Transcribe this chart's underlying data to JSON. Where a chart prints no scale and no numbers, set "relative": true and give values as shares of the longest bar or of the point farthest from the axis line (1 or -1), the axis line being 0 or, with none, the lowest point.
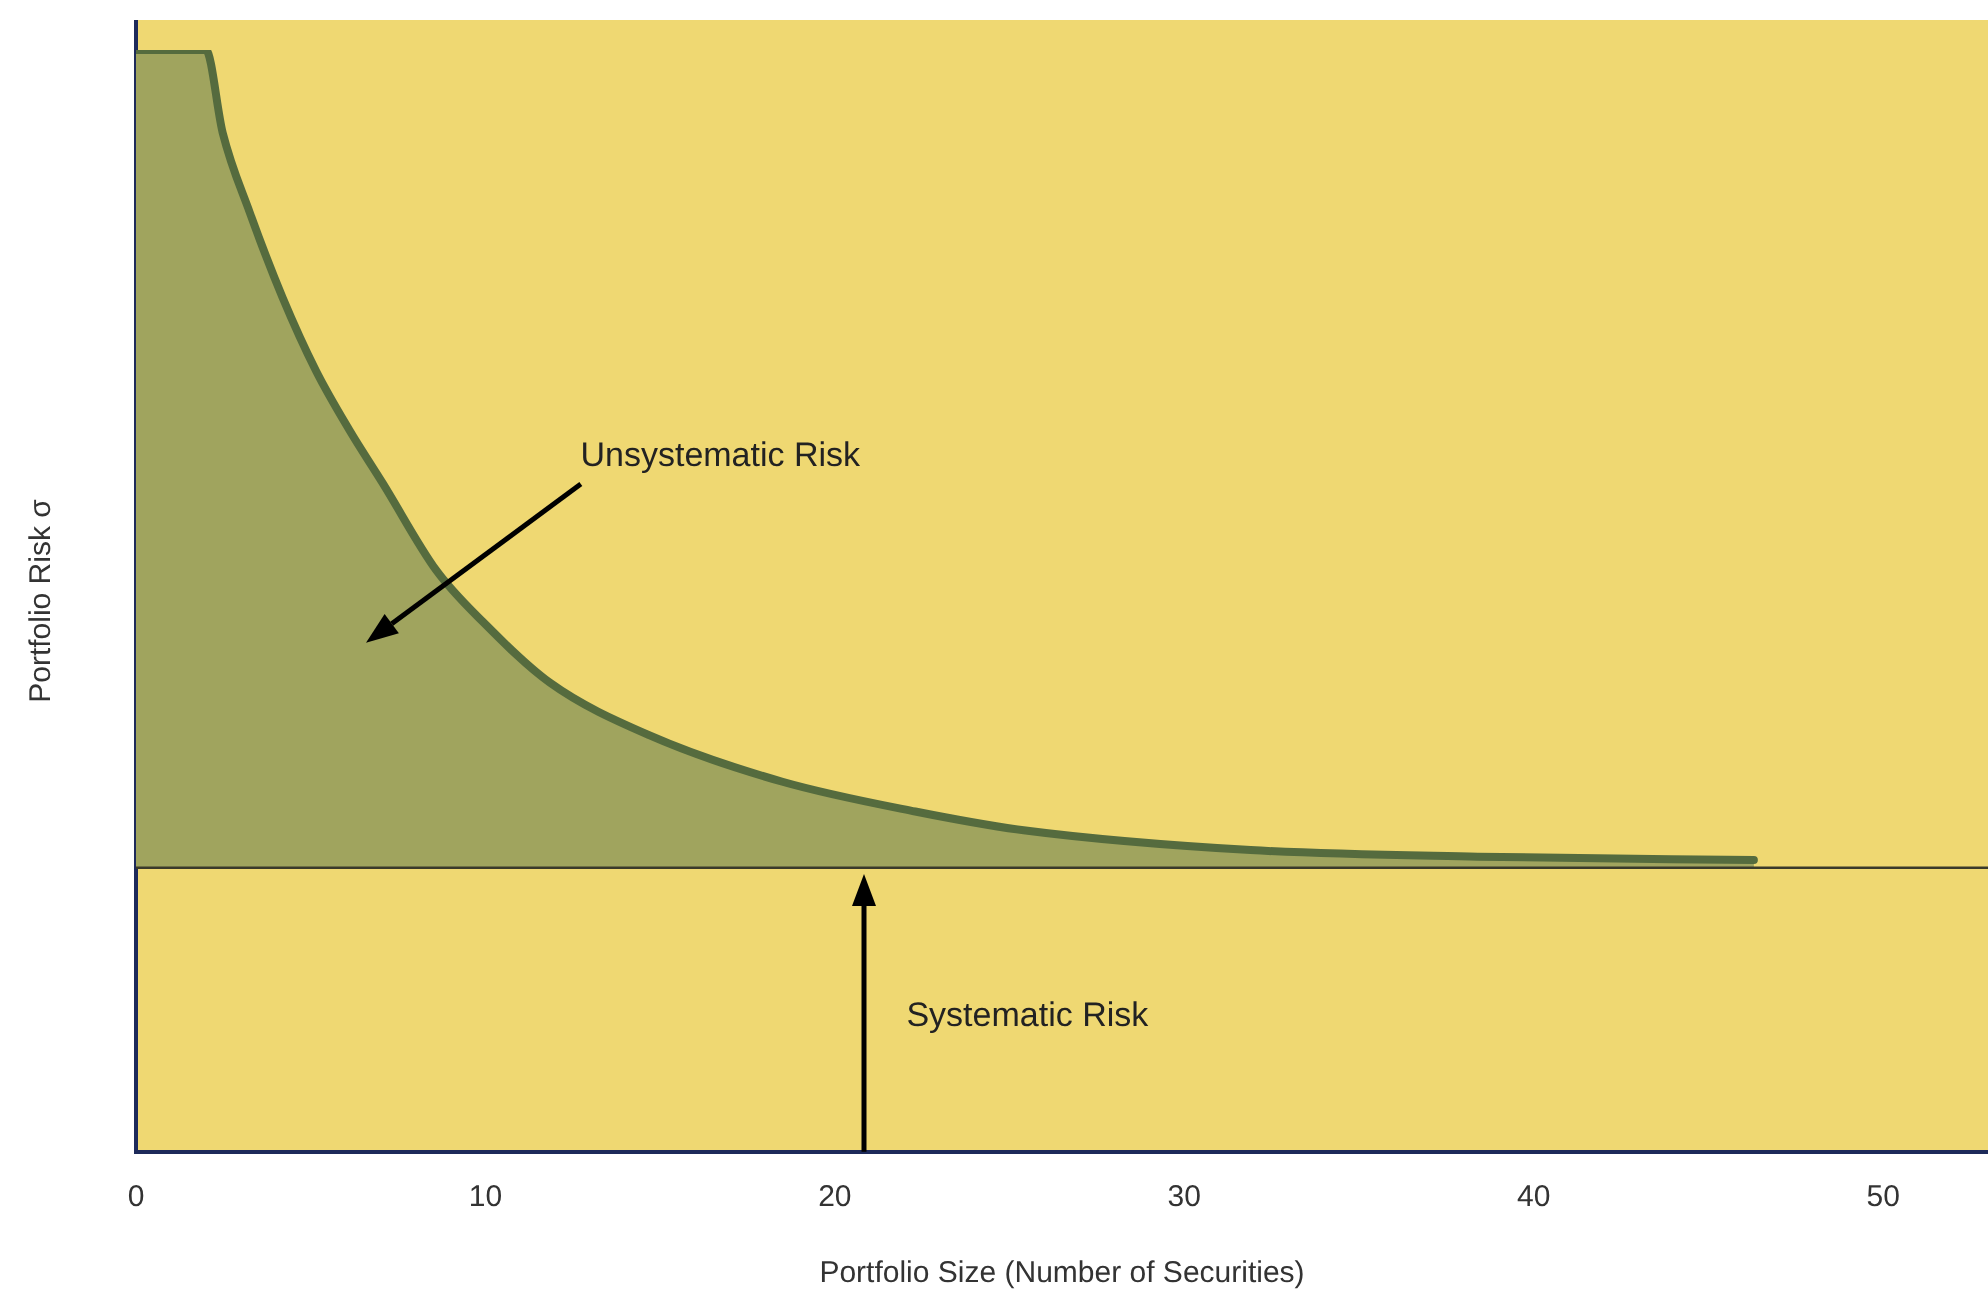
{
  "chart_data": {
    "type": "area",
    "relative": true,
    "xlabel": "Portfolio Size (Number of Securities)",
    "ylabel": "Portfolio Risk σ",
    "x": [
      0,
      2,
      2.48,
      3.25,
      4.2,
      5.15,
      6.11,
      7.06,
      8.59,
      9.93,
      11.84,
      14.7,
      18.5,
      22.3,
      25.4,
      31.9,
      38.4,
      46.3
    ],
    "series": [
      {
        "color": "#556b3e",
        "values": [
          1,
          1,
          0.925,
          0.853,
          0.775,
          0.709,
          0.655,
          0.607,
          0.528,
          0.481,
          0.426,
          0.378,
          0.336,
          0.309,
          0.292,
          0.274,
          0.268,
          0.265
        ]
      }
    ],
    "xlim": [
      0,
      53
    ],
    "xticks": [
      0,
      10,
      20,
      30,
      40,
      50
    ],
    "ref_lines": [
      {
        "axis": "y",
        "value": 0.258,
        "color": "#3a3a2a"
      }
    ],
    "annotations": [
      "Unsystematic Risk",
      "Systematic Risk"
    ],
    "grid": false,
    "legend": false
  }
}
